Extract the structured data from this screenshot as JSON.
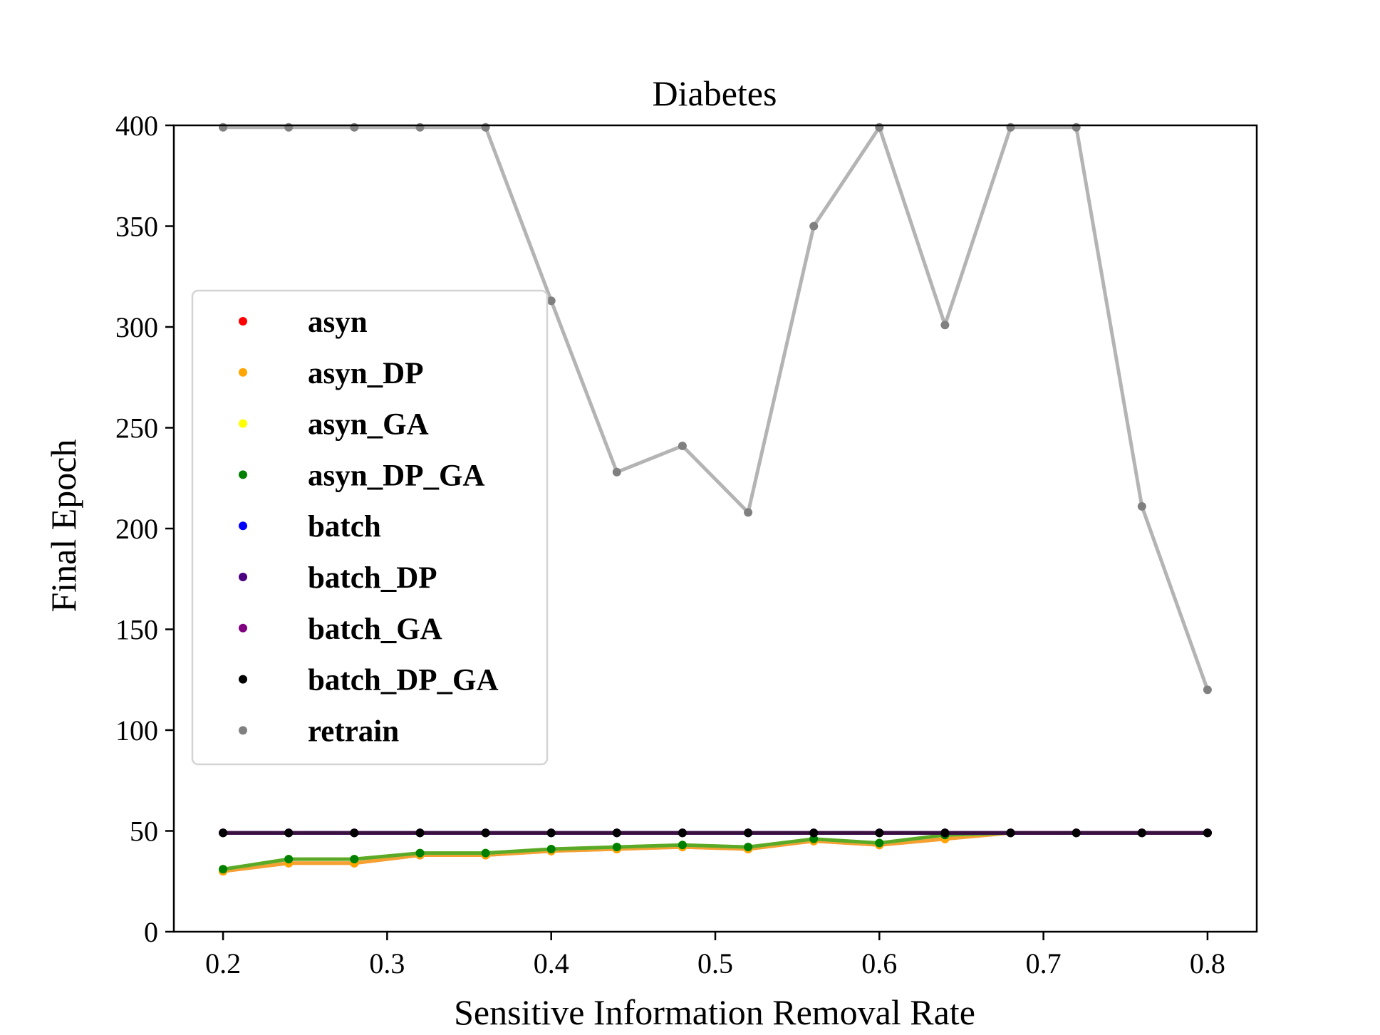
{
  "chart_data": {
    "type": "line",
    "title": "Diabetes",
    "xlabel": "Sensitive Information Removal Rate",
    "ylabel": "Final Epoch",
    "xlim": [
      0.17,
      0.83
    ],
    "ylim": [
      0,
      400
    ],
    "xticks": [
      0.2,
      0.3,
      0.4,
      0.5,
      0.6,
      0.7,
      0.8
    ],
    "xtick_labels": [
      "0.2",
      "0.3",
      "0.4",
      "0.5",
      "0.6",
      "0.7",
      "0.8"
    ],
    "yticks": [
      0,
      50,
      100,
      150,
      200,
      250,
      300,
      350,
      400
    ],
    "ytick_labels": [
      "0",
      "50",
      "100",
      "150",
      "200",
      "250",
      "300",
      "350",
      "400"
    ],
    "grid": false,
    "legend_position": "center-left",
    "x": [
      0.2,
      0.24,
      0.28,
      0.32,
      0.36,
      0.4,
      0.44,
      0.48,
      0.52,
      0.56,
      0.6,
      0.64,
      0.68,
      0.72,
      0.76,
      0.8
    ],
    "series": [
      {
        "name": "asyn",
        "color": "#ff0000",
        "line_color": "#f0a0a0",
        "values": [
          30,
          34,
          34,
          38,
          38,
          40,
          41,
          42,
          41,
          45,
          43,
          46,
          49,
          49,
          49,
          49
        ]
      },
      {
        "name": "asyn_DP",
        "color": "#ffa500",
        "line_color": "#f5a030",
        "values": [
          30,
          34,
          34,
          38,
          38,
          40,
          41,
          42,
          41,
          45,
          43,
          46,
          49,
          49,
          49,
          49
        ]
      },
      {
        "name": "asyn_GA",
        "color": "#ffff00",
        "line_color": "#e8e870",
        "values": [
          31,
          36,
          36,
          39,
          39,
          41,
          42,
          43,
          42,
          46,
          44,
          48,
          49,
          49,
          49,
          49
        ]
      },
      {
        "name": "asyn_DP_GA",
        "color": "#008000",
        "line_color": "#5aaa28",
        "values": [
          31,
          36,
          36,
          39,
          39,
          41,
          42,
          43,
          42,
          46,
          44,
          48,
          49,
          49,
          49,
          49
        ]
      },
      {
        "name": "batch",
        "color": "#0000ff",
        "line_color": "#6060d0",
        "values": [
          49,
          49,
          49,
          49,
          49,
          49,
          49,
          49,
          49,
          49,
          49,
          49,
          49,
          49,
          49,
          49
        ]
      },
      {
        "name": "batch_DP",
        "color": "#4b0082",
        "line_color": "#4b0082",
        "values": [
          49,
          49,
          49,
          49,
          49,
          49,
          49,
          49,
          49,
          49,
          49,
          49,
          49,
          49,
          49,
          49
        ]
      },
      {
        "name": "batch_GA",
        "color": "#800080",
        "line_color": "#5a1a6a",
        "values": [
          49,
          49,
          49,
          49,
          49,
          49,
          49,
          49,
          49,
          49,
          49,
          49,
          49,
          49,
          49,
          49
        ]
      },
      {
        "name": "batch_DP_GA",
        "color": "#000000",
        "line_color": "#3a1040",
        "values": [
          49,
          49,
          49,
          49,
          49,
          49,
          49,
          49,
          49,
          49,
          49,
          49,
          49,
          49,
          49,
          49
        ]
      },
      {
        "name": "retrain",
        "color": "#808080",
        "line_color": "#b4b4b4",
        "values": [
          399,
          399,
          399,
          399,
          399,
          313,
          228,
          241,
          208,
          350,
          399,
          301,
          399,
          399,
          211,
          120
        ]
      }
    ]
  }
}
